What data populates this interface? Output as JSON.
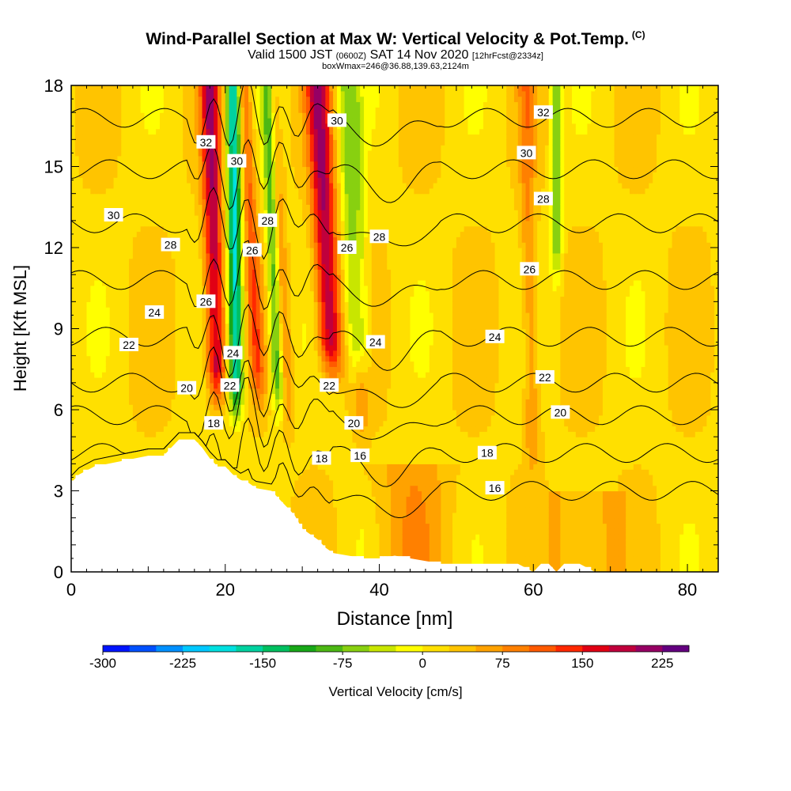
{
  "header": {
    "title": "Wind-Parallel Section at Max W: Vertical Velocity & Pot.Temp.",
    "copyright_mark": "(C)",
    "valid_prefix": "Valid 1500 JST",
    "valid_utc": "(0600Z)",
    "valid_date": "SAT 14 Nov 2020",
    "forecast_info": "[12hrFcst@2334z]",
    "box_info": "boxWmax=246@36.88,139.63,2124m"
  },
  "colorbar": {
    "label": "Vertical Velocity [cm/s]",
    "tick_labels": [
      "-300",
      "-225",
      "-150",
      "-75",
      "0",
      "75",
      "150",
      "225"
    ],
    "tick_values": [
      -300,
      -225,
      -150,
      -75,
      0,
      75,
      150,
      225
    ],
    "min": -300,
    "max": 250,
    "step": 25,
    "colors": [
      "#0014ff",
      "#0050ff",
      "#0090ff",
      "#00c8ff",
      "#00e0e0",
      "#00d2a0",
      "#00c060",
      "#18a818",
      "#4cb814",
      "#88d010",
      "#c8e600",
      "#ffff00",
      "#ffe000",
      "#ffc400",
      "#ffa200",
      "#ff8000",
      "#ff5a00",
      "#ff2800",
      "#e10014",
      "#c0003c",
      "#960064",
      "#640080"
    ]
  },
  "chart_data": {
    "type": "heatmap",
    "title": "Wind-Parallel Section at Max W: Vertical Velocity & Pot.Temp.",
    "xlabel": "Distance [nm]",
    "ylabel": "Height [Kft MSL]",
    "xlim": [
      0,
      84
    ],
    "ylim": [
      0,
      18
    ],
    "x_ticks": [
      0,
      20,
      40,
      60,
      80
    ],
    "y_ticks": [
      0,
      3,
      6,
      9,
      12,
      15,
      18
    ],
    "field": "Vertical Velocity [cm/s]",
    "background_value": 20,
    "updrafts": [
      {
        "x_bottom": 19,
        "x_top": 18,
        "z_bottom": 5.5,
        "width": 1.2,
        "peak": 175
      },
      {
        "x_bottom": 24.5,
        "x_top": 22.5,
        "z_bottom": 5.5,
        "width": 0.9,
        "peak": 90
      },
      {
        "x_bottom": 28.5,
        "x_top": 26,
        "z_bottom": 4.5,
        "width": 0.8,
        "peak": 60
      },
      {
        "x_bottom": 34,
        "x_top": 32,
        "z_bottom": 6.5,
        "width": 1.5,
        "peak": 180
      },
      {
        "x_bottom": 38,
        "x_top": 36,
        "z_bottom": 4,
        "width": 0.8,
        "peak": 40
      },
      {
        "x_bottom": 60,
        "x_top": 59,
        "z_bottom": 3,
        "width": 1.0,
        "peak": 60
      }
    ],
    "downdrafts": [
      {
        "x_bottom": 21.5,
        "x_top": 21,
        "z_bottom": 5,
        "width": 0.9,
        "peak": -200
      },
      {
        "x_bottom": 27,
        "x_top": 25.5,
        "z_bottom": 5,
        "width": 0.8,
        "peak": -120
      },
      {
        "x_bottom": 37.5,
        "x_top": 36,
        "z_bottom": 6.5,
        "width": 1.3,
        "peak": -120
      },
      {
        "x_bottom": 63,
        "x_top": 63,
        "z_bottom": 10,
        "width": 0.7,
        "peak": -90
      }
    ],
    "terrain_kft": [
      [
        0,
        3.3
      ],
      [
        1,
        3.6
      ],
      [
        3,
        3.9
      ],
      [
        10,
        4.3
      ],
      [
        12,
        4.3
      ],
      [
        13,
        4.6
      ],
      [
        14,
        4.9
      ],
      [
        16,
        4.9
      ],
      [
        17,
        4.6
      ],
      [
        18,
        4.2
      ],
      [
        19,
        3.9
      ],
      [
        20,
        3.9
      ],
      [
        21,
        3.6
      ],
      [
        22,
        3.4
      ],
      [
        23,
        3.3
      ],
      [
        24,
        3.1
      ],
      [
        26,
        3.0
      ],
      [
        27,
        2.7
      ],
      [
        28,
        2.4
      ],
      [
        29,
        2.1
      ],
      [
        30,
        1.6
      ],
      [
        31,
        1.4
      ],
      [
        32,
        1.2
      ],
      [
        33,
        0.9
      ],
      [
        34,
        0.7
      ],
      [
        36,
        0.6
      ],
      [
        38,
        0.5
      ],
      [
        40,
        0.5
      ],
      [
        42,
        0.6
      ],
      [
        44,
        0.5
      ],
      [
        46,
        0.4
      ],
      [
        48,
        0.3
      ],
      [
        52,
        0.3
      ],
      [
        58,
        0.3
      ],
      [
        60,
        0.0
      ],
      [
        61,
        0.3
      ],
      [
        62,
        0.3
      ],
      [
        63,
        0.0
      ],
      [
        64,
        0.3
      ],
      [
        66,
        0.3
      ],
      [
        68,
        0.0
      ],
      [
        84,
        0.0
      ]
    ],
    "theta_contours": {
      "units": "potential temperature (labels)",
      "levels": [
        16,
        18,
        20,
        22,
        24,
        26,
        28,
        30,
        32
      ],
      "labels": [
        {
          "text": "32",
          "x": 17.5,
          "y": 15.9
        },
        {
          "text": "30",
          "x": 21.5,
          "y": 15.2
        },
        {
          "text": "30",
          "x": 5.5,
          "y": 13.2
        },
        {
          "text": "28",
          "x": 12.9,
          "y": 12.1
        },
        {
          "text": "28",
          "x": 25.5,
          "y": 13.0
        },
        {
          "text": "26",
          "x": 23.5,
          "y": 11.9
        },
        {
          "text": "26",
          "x": 17.5,
          "y": 10.0
        },
        {
          "text": "24",
          "x": 10.8,
          "y": 9.6
        },
        {
          "text": "22",
          "x": 7.5,
          "y": 8.4
        },
        {
          "text": "24",
          "x": 21.0,
          "y": 8.1
        },
        {
          "text": "22",
          "x": 20.6,
          "y": 6.9
        },
        {
          "text": "20",
          "x": 15.0,
          "y": 6.8
        },
        {
          "text": "18",
          "x": 18.5,
          "y": 5.5
        },
        {
          "text": "30",
          "x": 34.5,
          "y": 16.7
        },
        {
          "text": "28",
          "x": 40.0,
          "y": 12.4
        },
        {
          "text": "26",
          "x": 35.8,
          "y": 12.0
        },
        {
          "text": "24",
          "x": 39.5,
          "y": 8.5
        },
        {
          "text": "22",
          "x": 33.5,
          "y": 6.9
        },
        {
          "text": "20",
          "x": 36.7,
          "y": 5.5
        },
        {
          "text": "18",
          "x": 32.5,
          "y": 4.2
        },
        {
          "text": "16",
          "x": 37.5,
          "y": 4.3
        },
        {
          "text": "32",
          "x": 61.3,
          "y": 17.0
        },
        {
          "text": "30",
          "x": 59.1,
          "y": 15.5
        },
        {
          "text": "28",
          "x": 61.3,
          "y": 13.8
        },
        {
          "text": "26",
          "x": 59.5,
          "y": 11.2
        },
        {
          "text": "24",
          "x": 55.0,
          "y": 8.7
        },
        {
          "text": "22",
          "x": 61.5,
          "y": 7.2
        },
        {
          "text": "20",
          "x": 63.5,
          "y": 5.9
        },
        {
          "text": "18",
          "x": 54.0,
          "y": 4.4
        },
        {
          "text": "16",
          "x": 55.0,
          "y": 3.1
        }
      ]
    }
  }
}
